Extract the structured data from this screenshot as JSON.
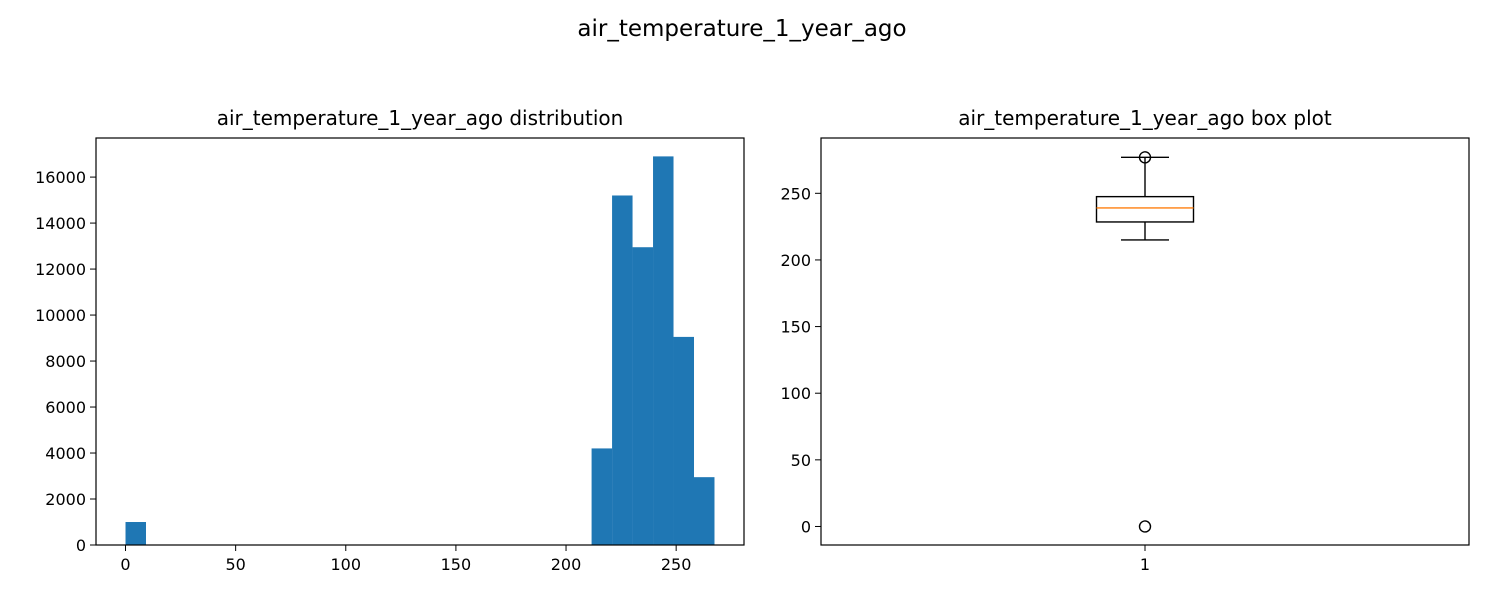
{
  "figure": {
    "suptitle": "air_temperature_1_year_ago"
  },
  "chart_data": [
    {
      "type": "bar",
      "subtype": "histogram",
      "title": "air_temperature_1_year_ago distribution",
      "xlabel": "",
      "ylabel": "",
      "color": "#1f77b4",
      "bin_width": 9.3,
      "bins": [
        {
          "x0": 0.0,
          "x1": 9.3,
          "count": 1000
        },
        {
          "x0": 211.6,
          "x1": 220.9,
          "count": 4200
        },
        {
          "x0": 220.9,
          "x1": 230.2,
          "count": 15200
        },
        {
          "x0": 230.2,
          "x1": 239.5,
          "count": 12950
        },
        {
          "x0": 239.5,
          "x1": 248.8,
          "count": 16900
        },
        {
          "x0": 248.8,
          "x1": 258.1,
          "count": 9050
        },
        {
          "x0": 258.1,
          "x1": 267.4,
          "count": 2950
        }
      ],
      "xlim": [
        -13.4,
        280.8
      ],
      "ylim": [
        0,
        17700
      ],
      "xticks": [
        0,
        50,
        100,
        150,
        200,
        250
      ],
      "yticks": [
        0,
        2000,
        4000,
        6000,
        8000,
        10000,
        12000,
        14000,
        16000
      ],
      "grid": false
    },
    {
      "type": "box",
      "title": "air_temperature_1_year_ago box plot",
      "xlabel": "",
      "ylabel": "",
      "categories": [
        "1"
      ],
      "whisker_low": 215,
      "q1": 228.5,
      "median": 239,
      "q3": 247.5,
      "whisker_high": 277,
      "outliers": [
        0,
        277
      ],
      "median_color": "#ff7f0e",
      "ylim": [
        -13.9,
        291.5
      ],
      "yticks": [
        0,
        50,
        100,
        150,
        200,
        250
      ],
      "grid": false
    }
  ]
}
